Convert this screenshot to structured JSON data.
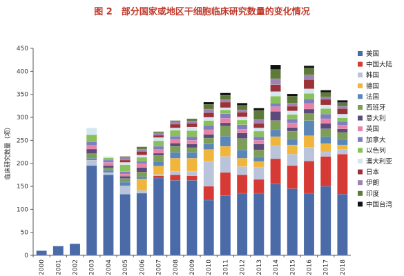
{
  "chart_data": {
    "type": "bar",
    "stacked": true,
    "title": "图 2　部分国家或地区干细胞临床研究数量的变化情况",
    "ylabel": "临床研究数量（项）",
    "xlabel": "",
    "ylim": [
      0,
      450
    ],
    "yticks": [
      0,
      50,
      100,
      150,
      200,
      250,
      300,
      350,
      400,
      450
    ],
    "grid": false,
    "legend_position": "right",
    "categories": [
      "2000",
      "2001",
      "2002",
      "2003",
      "2004",
      "2005",
      "2006",
      "2007",
      "2008",
      "2009",
      "2010",
      "2011",
      "2012",
      "2013",
      "2014",
      "2015",
      "2016",
      "2017",
      "2018"
    ],
    "series": [
      {
        "name": "美国",
        "color": "#4a6aa8",
        "values": [
          10,
          20,
          25,
          195,
          175,
          133,
          135,
          168,
          163,
          163,
          120,
          130,
          135,
          135,
          155,
          145,
          135,
          150,
          133
        ]
      },
      {
        "name": "中国大陆",
        "color": "#d63a34",
        "values": [
          0,
          0,
          0,
          0,
          0,
          0,
          0,
          5,
          12,
          10,
          30,
          50,
          40,
          30,
          55,
          50,
          70,
          65,
          87
        ]
      },
      {
        "name": "韩国",
        "color": "#b9c3d9",
        "values": [
          0,
          0,
          0,
          12,
          5,
          18,
          6,
          3,
          8,
          10,
          55,
          35,
          18,
          27,
          28,
          25,
          30,
          10,
          10
        ]
      },
      {
        "name": "德国",
        "color": "#f0b63c",
        "values": [
          0,
          0,
          0,
          0,
          0,
          0,
          25,
          18,
          28,
          28,
          25,
          22,
          18,
          12,
          20,
          20,
          25,
          18,
          10
        ]
      },
      {
        "name": "法国",
        "color": "#5b86b8",
        "values": [
          0,
          0,
          0,
          4,
          5,
          8,
          5,
          10,
          13,
          13,
          12,
          22,
          18,
          10,
          15,
          13,
          33,
          15,
          12
        ]
      },
      {
        "name": "西班牙",
        "color": "#7c9e57",
        "values": [
          0,
          0,
          0,
          10,
          5,
          8,
          10,
          13,
          13,
          10,
          13,
          22,
          25,
          15,
          20,
          17,
          15,
          17,
          15
        ]
      },
      {
        "name": "意大利",
        "color": "#5b4a7a",
        "values": [
          0,
          0,
          0,
          10,
          5,
          5,
          10,
          5,
          7,
          8,
          8,
          7,
          12,
          13,
          20,
          8,
          10,
          12,
          8
        ]
      },
      {
        "name": "英国",
        "color": "#e683a6",
        "values": [
          0,
          0,
          0,
          8,
          7,
          5,
          8,
          8,
          8,
          8,
          10,
          10,
          8,
          8,
          10,
          10,
          12,
          10,
          8
        ]
      },
      {
        "name": "加拿大",
        "color": "#7f7fbf",
        "values": [
          0,
          0,
          0,
          8,
          5,
          5,
          6,
          7,
          7,
          8,
          10,
          10,
          10,
          8,
          8,
          8,
          10,
          10,
          8
        ]
      },
      {
        "name": "以色列",
        "color": "#8ac05a",
        "values": [
          0,
          0,
          0,
          15,
          5,
          15,
          8,
          12,
          13,
          13,
          10,
          8,
          10,
          12,
          15,
          10,
          12,
          12,
          8
        ]
      },
      {
        "name": "澳大利亚",
        "color": "#d4e6f2",
        "values": [
          0,
          0,
          0,
          15,
          3,
          5,
          5,
          7,
          5,
          8,
          7,
          5,
          7,
          7,
          10,
          8,
          10,
          8,
          8
        ]
      },
      {
        "name": "日本",
        "color": "#9a3238",
        "values": [
          0,
          0,
          0,
          0,
          0,
          5,
          8,
          5,
          8,
          8,
          10,
          12,
          10,
          10,
          15,
          10,
          20,
          12,
          12
        ]
      },
      {
        "name": "伊朗",
        "color": "#9d82b2",
        "values": [
          0,
          0,
          0,
          0,
          0,
          5,
          5,
          5,
          5,
          5,
          8,
          5,
          5,
          8,
          13,
          7,
          10,
          5,
          5
        ]
      },
      {
        "name": "印度",
        "color": "#5e7a3a",
        "values": [
          0,
          0,
          0,
          0,
          0,
          3,
          5,
          3,
          3,
          5,
          10,
          10,
          10,
          20,
          20,
          15,
          15,
          10,
          8
        ]
      },
      {
        "name": "中国台湾",
        "color": "#111111",
        "values": [
          0,
          0,
          0,
          0,
          0,
          0,
          0,
          0,
          0,
          0,
          5,
          5,
          5,
          5,
          10,
          5,
          5,
          5,
          5
        ]
      }
    ]
  }
}
